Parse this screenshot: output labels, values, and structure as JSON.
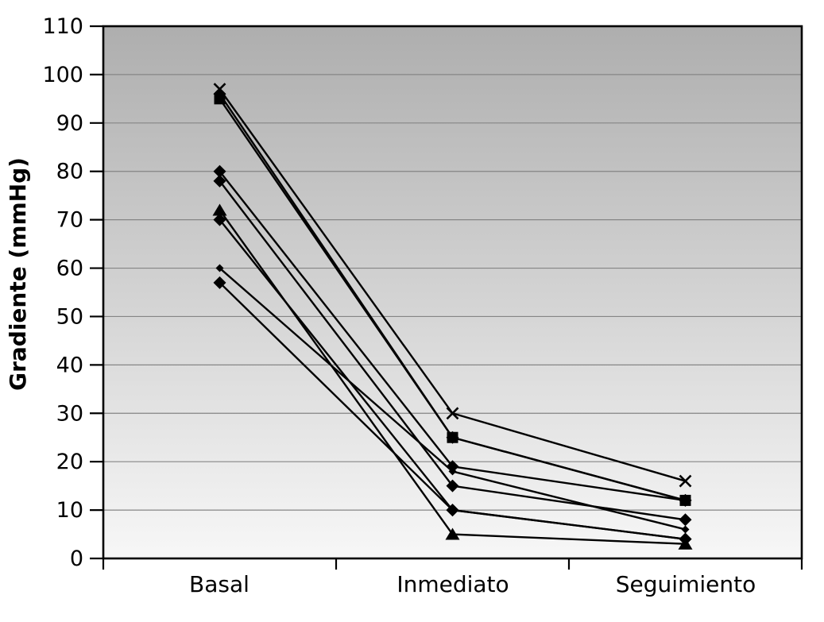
{
  "chart_data": {
    "type": "line",
    "title": "",
    "xlabel": "",
    "ylabel": "Gradiente (mmHg)",
    "categories": [
      "Basal",
      "Inmediato",
      "Seguimiento"
    ],
    "ylim": [
      0,
      110
    ],
    "yticks": [
      0,
      10,
      20,
      30,
      40,
      50,
      60,
      70,
      80,
      90,
      100,
      110
    ],
    "grid": true,
    "legend": false,
    "plot_background": {
      "gradient_top": "#aeaeae",
      "gradient_bottom": "#f7f7f7"
    },
    "colors": {
      "series_line": "#000000",
      "marker_fill": "#000000",
      "gridline": "#858585",
      "axis": "#000000",
      "page_background": "#ffffff"
    },
    "series": [
      {
        "id": "series-1",
        "marker": "square",
        "values": [
          95,
          25,
          12
        ]
      },
      {
        "id": "series-2",
        "marker": "diamond",
        "values": [
          96,
          25,
          12
        ]
      },
      {
        "id": "series-3",
        "marker": "diamond",
        "values": [
          80,
          19,
          12
        ]
      },
      {
        "id": "series-4",
        "marker": "diamond",
        "values": [
          78,
          15,
          8
        ]
      },
      {
        "id": "series-5",
        "marker": "diamond-small",
        "values": [
          60,
          18,
          6
        ]
      },
      {
        "id": "series-6",
        "marker": "triangle",
        "values": [
          72,
          5,
          3
        ]
      },
      {
        "id": "series-7",
        "marker": "diamond",
        "values": [
          70,
          10,
          4
        ]
      },
      {
        "id": "series-8",
        "marker": "diamond",
        "values": [
          57,
          10,
          4
        ]
      },
      {
        "id": "series-9",
        "marker": "x",
        "values": [
          97,
          30,
          16
        ]
      }
    ]
  }
}
